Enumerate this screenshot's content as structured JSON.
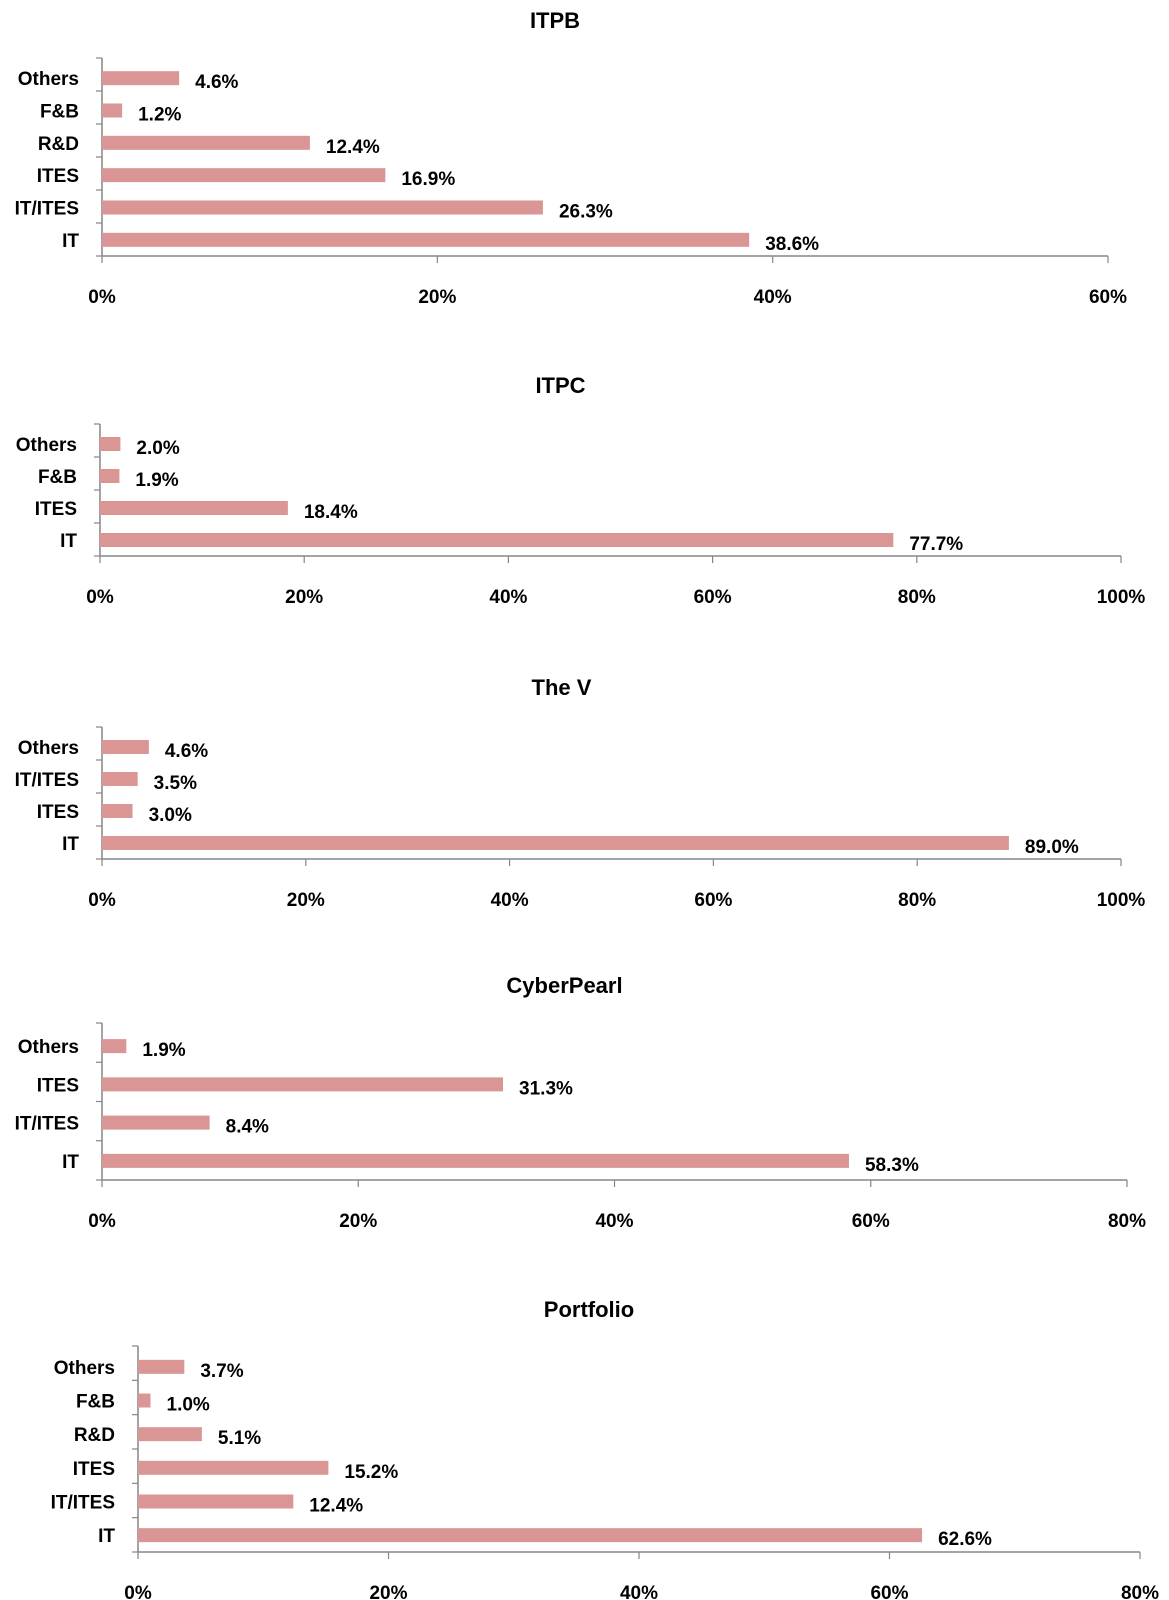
{
  "bar_color": "#d99694",
  "axis_color": "#868686",
  "chart_data": [
    {
      "type": "bar",
      "orientation": "horizontal",
      "title": "ITPB",
      "categories": [
        "Others",
        "F&B",
        "R&D",
        "ITES",
        "IT/ITES",
        "IT"
      ],
      "values": [
        4.6,
        1.2,
        12.4,
        16.9,
        26.3,
        38.6
      ],
      "data_labels": [
        "4.6%",
        "1.2%",
        "12.4%",
        "16.9%",
        "26.3%",
        "38.6%"
      ],
      "xlim": [
        0,
        60
      ],
      "xticks": [
        "0%",
        "20%",
        "40%",
        "60%"
      ],
      "grid": false,
      "legend": "none"
    },
    {
      "type": "bar",
      "orientation": "horizontal",
      "title": "ITPC",
      "categories": [
        "Others",
        "F&B",
        "ITES",
        "IT"
      ],
      "values": [
        2.0,
        1.9,
        18.4,
        77.7
      ],
      "data_labels": [
        "2.0%",
        "1.9%",
        "18.4%",
        "77.7%"
      ],
      "xlim": [
        0,
        100
      ],
      "xticks": [
        "0%",
        "20%",
        "40%",
        "60%",
        "80%",
        "100%"
      ],
      "grid": false,
      "legend": "none"
    },
    {
      "type": "bar",
      "orientation": "horizontal",
      "title": "The V",
      "categories": [
        "Others",
        "IT/ITES",
        "ITES",
        "IT"
      ],
      "values": [
        4.6,
        3.5,
        3.0,
        89.0
      ],
      "data_labels": [
        "4.6%",
        "3.5%",
        "3.0%",
        "89.0%"
      ],
      "xlim": [
        0,
        100
      ],
      "xticks": [
        "0%",
        "20%",
        "40%",
        "60%",
        "80%",
        "100%"
      ],
      "grid": false,
      "legend": "none"
    },
    {
      "type": "bar",
      "orientation": "horizontal",
      "title": "CyberPearl",
      "categories": [
        "Others",
        "ITES",
        "IT/ITES",
        "IT"
      ],
      "values": [
        1.9,
        31.3,
        8.4,
        58.3
      ],
      "data_labels": [
        "1.9%",
        "31.3%",
        "8.4%",
        "58.3%"
      ],
      "xlim": [
        0,
        80
      ],
      "xticks": [
        "0%",
        "20%",
        "40%",
        "60%",
        "80%"
      ],
      "grid": false,
      "legend": "none"
    },
    {
      "type": "bar",
      "orientation": "horizontal",
      "title": "Portfolio",
      "categories": [
        "Others",
        "F&B",
        "R&D",
        "ITES",
        "IT/ITES",
        "IT"
      ],
      "values": [
        3.7,
        1.0,
        5.1,
        15.2,
        12.4,
        62.6
      ],
      "data_labels": [
        "3.7%",
        "1.0%",
        "5.1%",
        "15.2%",
        "12.4%",
        "62.6%"
      ],
      "xlim": [
        0,
        80
      ],
      "xticks": [
        "0%",
        "20%",
        "40%",
        "60%",
        "80%"
      ],
      "grid": false,
      "legend": "none"
    }
  ]
}
